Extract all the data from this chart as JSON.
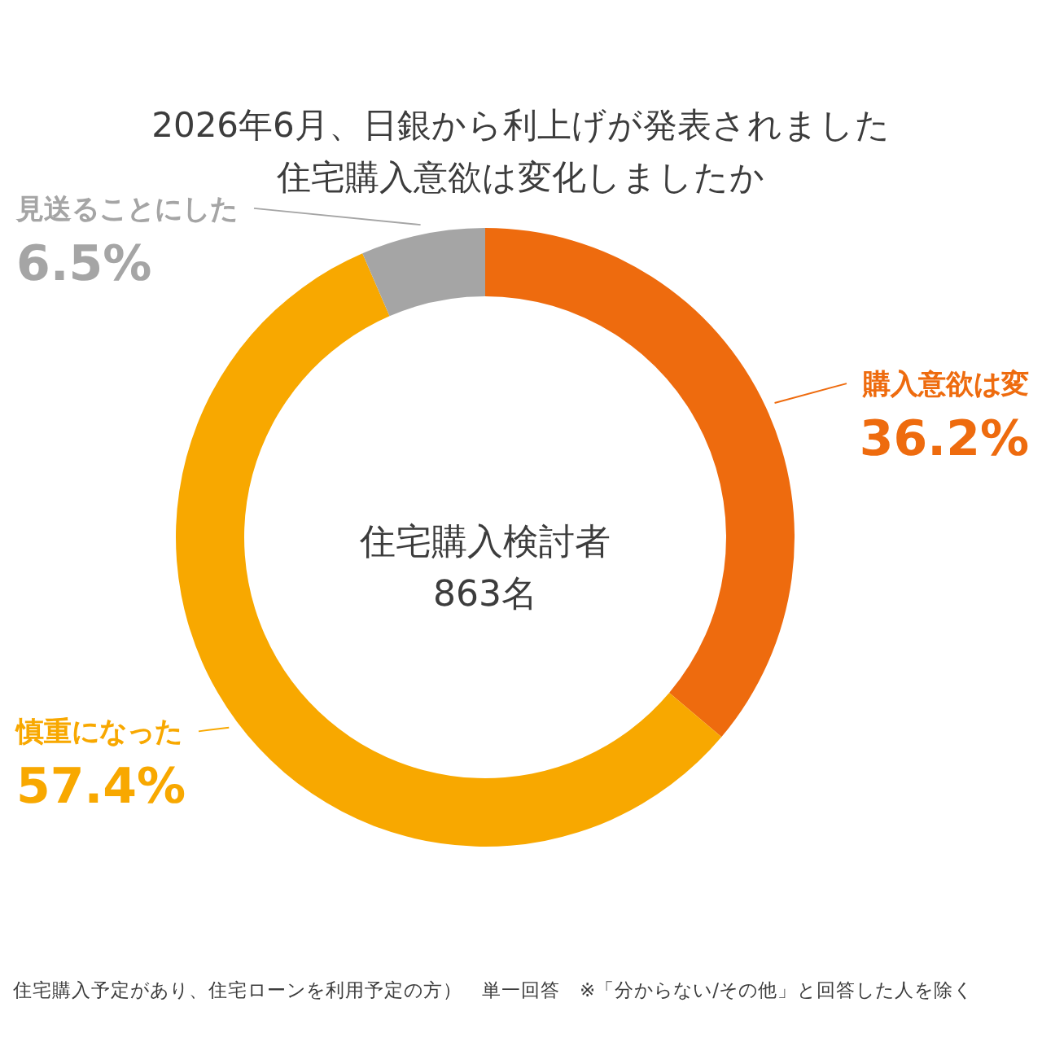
{
  "chart_data": {
    "type": "donut",
    "title": "2026年6月、日銀から利上げが発表されました",
    "subtitle": "住宅購入意欲は変化しましたか",
    "categories": [
      "購入意欲は変",
      "慎重になった",
      "見送ることにした"
    ],
    "values": [
      36.2,
      57.4,
      6.5
    ],
    "colors": [
      "#ee6b0e",
      "#f8a800",
      "#a5a5a5"
    ],
    "value_labels": [
      "36.2%",
      "57.4%",
      "6.5%"
    ],
    "annotations": [
      "住宅購入検討者",
      "863名",
      "住宅購入予定があり、住宅ローンを利用予定の方）　単一回答　※「分からない/その他」と回答した人を除く"
    ]
  }
}
